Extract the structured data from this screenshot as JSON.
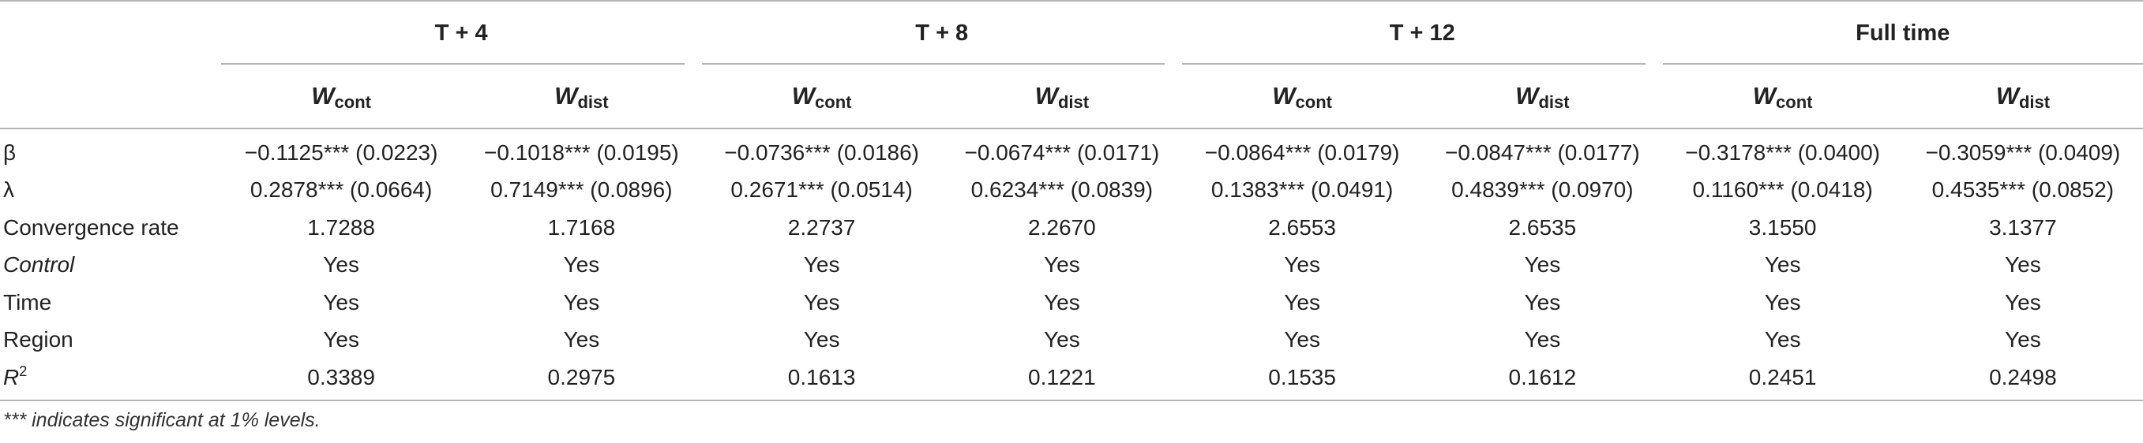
{
  "table": {
    "groups": [
      {
        "label": "T + 4"
      },
      {
        "label": "T + 8"
      },
      {
        "label": "T + 12"
      },
      {
        "label": "Full time"
      }
    ],
    "subheaders": [
      {
        "main": "W",
        "sub": "cont"
      },
      {
        "main": "W",
        "sub": "dist"
      },
      {
        "main": "W",
        "sub": "cont"
      },
      {
        "main": "W",
        "sub": "dist"
      },
      {
        "main": "W",
        "sub": "cont"
      },
      {
        "main": "W",
        "sub": "dist"
      },
      {
        "main": "W",
        "sub": "cont"
      },
      {
        "main": "W",
        "sub": "dist"
      }
    ],
    "rows": [
      {
        "label": "β",
        "cells": [
          "−0.1125*** (0.0223)",
          "−0.1018*** (0.0195)",
          "−0.0736*** (0.0186)",
          "−0.0674*** (0.0171)",
          "−0.0864*** (0.0179)",
          "−0.0847*** (0.0177)",
          "−0.3178*** (0.0400)",
          "−0.3059*** (0.0409)"
        ]
      },
      {
        "label": "λ",
        "cells": [
          "0.2878*** (0.0664)",
          "0.7149*** (0.0896)",
          "0.2671*** (0.0514)",
          "0.6234*** (0.0839)",
          "0.1383*** (0.0491)",
          "0.4839*** (0.0970)",
          "0.1160*** (0.0418)",
          "0.4535*** (0.0852)"
        ]
      },
      {
        "label": "Convergence rate",
        "cells": [
          "1.7288",
          "1.7168",
          "2.2737",
          "2.2670",
          "2.6553",
          "2.6535",
          "3.1550",
          "3.1377"
        ]
      },
      {
        "label": "Control",
        "cells": [
          "Yes",
          "Yes",
          "Yes",
          "Yes",
          "Yes",
          "Yes",
          "Yes",
          "Yes"
        ]
      },
      {
        "label": "Time",
        "cells": [
          "Yes",
          "Yes",
          "Yes",
          "Yes",
          "Yes",
          "Yes",
          "Yes",
          "Yes"
        ]
      },
      {
        "label": "Region",
        "cells": [
          "Yes",
          "Yes",
          "Yes",
          "Yes",
          "Yes",
          "Yes",
          "Yes",
          "Yes"
        ]
      },
      {
        "label": "R",
        "label_sup": "2",
        "cells": [
          "0.3389",
          "0.2975",
          "0.1613",
          "0.1221",
          "0.1535",
          "0.1612",
          "0.2451",
          "0.2498"
        ]
      }
    ]
  },
  "footnote": "*** indicates significant at 1% levels."
}
